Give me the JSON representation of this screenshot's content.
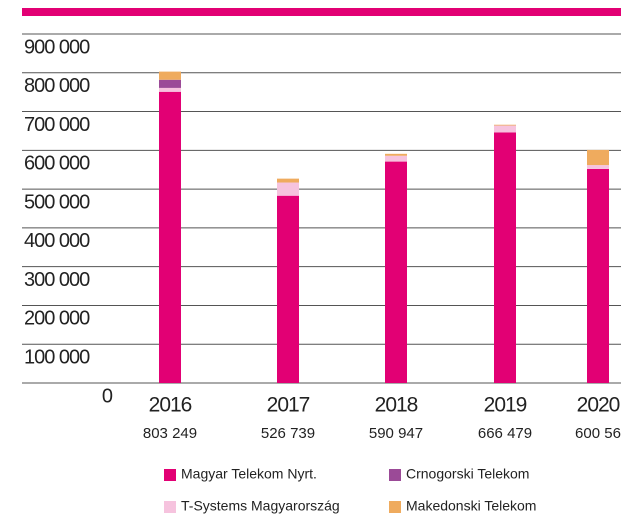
{
  "chart_data": {
    "type": "stacked_bar",
    "categories": [
      "2016",
      "2017",
      "2018",
      "2019",
      "2020"
    ],
    "totals": [
      "803 249",
      "526 739",
      "590 947",
      "666 479",
      "600 56"
    ],
    "series": [
      {
        "name": "Magyar Telekom Nyrt.",
        "color": "#e20074",
        "values": [
          751000,
          483000,
          571000,
          646000,
          552000
        ]
      },
      {
        "name": "Crnogorski Telekom",
        "color": "#9b4a97",
        "values": [
          21000,
          0,
          0,
          0,
          0
        ]
      },
      {
        "name": "T-Systems Magyarország",
        "color": "#f6c3de",
        "values": [
          10000,
          34000,
          15000,
          18000,
          10000
        ]
      },
      {
        "name": "Makedonski Telekom",
        "color": "#efab5e",
        "values": [
          21000,
          10000,
          5000,
          2000,
          39000
        ]
      }
    ],
    "ylim": [
      0,
      900000
    ],
    "yticks": [
      0,
      {
        "value": 100000,
        "label": "100 000"
      },
      {
        "value": 200000,
        "label": "200 000"
      },
      {
        "value": 300000,
        "label": "300 000"
      },
      {
        "value": 400000,
        "label": "400 000"
      },
      {
        "value": 500000,
        "label": "500 000"
      },
      {
        "value": 600000,
        "label": "600 000"
      },
      {
        "value": 700000,
        "label": "700 000"
      },
      {
        "value": 800000,
        "label": "800 000"
      },
      {
        "value": 900000,
        "label": "900 000"
      }
    ],
    "grid": true
  }
}
